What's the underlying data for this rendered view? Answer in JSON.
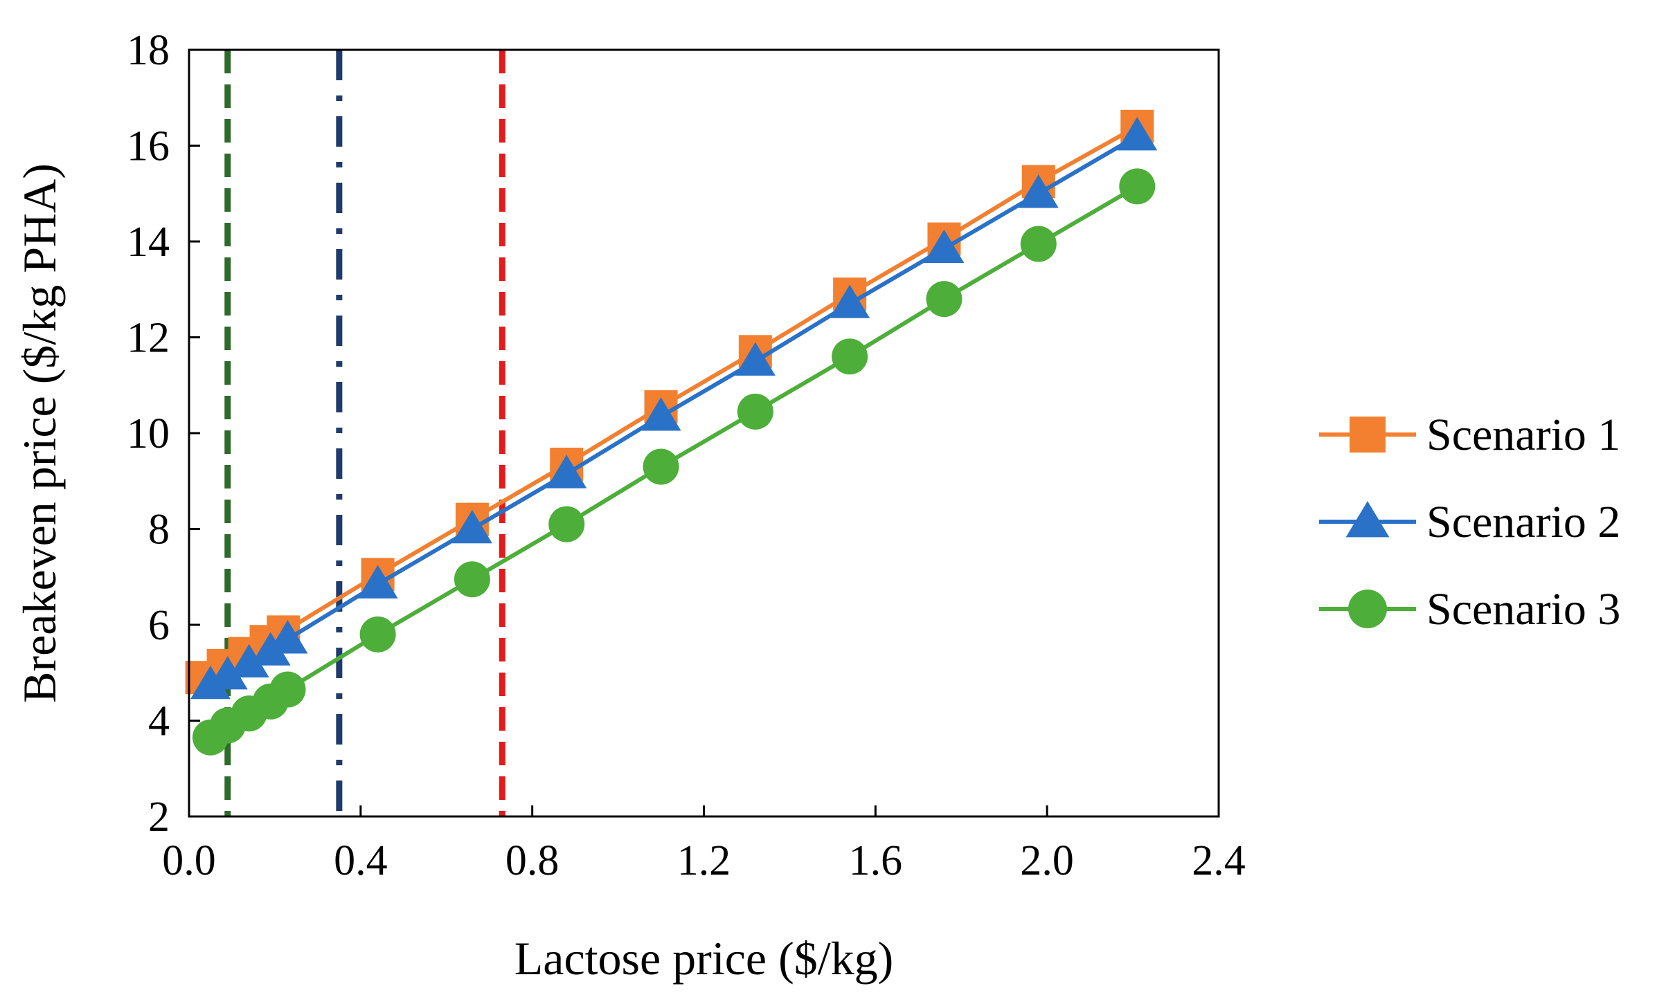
{
  "chart_data": {
    "type": "line",
    "title": "",
    "xlabel": "Lactose price ($/kg)",
    "ylabel": "Breakeven price ($/kg PHA)",
    "xlim": [
      0.0,
      2.4
    ],
    "ylim": [
      2,
      18
    ],
    "x_ticks": [
      0.0,
      0.4,
      0.8,
      1.2,
      1.6,
      2.0,
      2.4
    ],
    "x_tick_labels": [
      "0.0",
      "0.4",
      "0.8",
      "1.2",
      "1.6",
      "2.0",
      "2.4"
    ],
    "y_ticks": [
      2,
      4,
      6,
      8,
      10,
      12,
      14,
      16,
      18
    ],
    "y_tick_labels": [
      "2",
      "4",
      "6",
      "8",
      "10",
      "12",
      "14",
      "16",
      "18"
    ],
    "grid": false,
    "legend_position": "right",
    "series": [
      {
        "name": "Scenario 1",
        "color": "#F28030",
        "marker": "square",
        "x": [
          0.03,
          0.08,
          0.13,
          0.18,
          0.22,
          0.44,
          0.66,
          0.88,
          1.1,
          1.32,
          1.54,
          1.76,
          1.98,
          2.21
        ],
        "values": [
          4.9,
          5.15,
          5.4,
          5.65,
          5.85,
          7.05,
          8.2,
          9.35,
          10.55,
          11.7,
          12.9,
          14.05,
          15.25,
          16.4
        ]
      },
      {
        "name": "Scenario 2",
        "color": "#2A72C8",
        "marker": "triangle",
        "x": [
          0.05,
          0.09,
          0.14,
          0.19,
          0.23,
          0.44,
          0.66,
          0.88,
          1.1,
          1.32,
          1.54,
          1.76,
          1.98,
          2.21
        ],
        "values": [
          4.75,
          4.95,
          5.2,
          5.45,
          5.7,
          6.85,
          8.0,
          9.15,
          10.35,
          11.5,
          12.7,
          13.85,
          15.0,
          16.2
        ]
      },
      {
        "name": "Scenario 3",
        "color": "#4DAE3A",
        "marker": "circle",
        "x": [
          0.05,
          0.09,
          0.14,
          0.19,
          0.23,
          0.44,
          0.66,
          0.88,
          1.1,
          1.32,
          1.54,
          1.76,
          1.98,
          2.21
        ],
        "values": [
          3.65,
          3.9,
          4.15,
          4.4,
          4.65,
          5.8,
          6.95,
          8.1,
          9.3,
          10.45,
          11.6,
          12.8,
          13.95,
          15.15
        ]
      }
    ],
    "reference_lines": [
      {
        "x": 0.09,
        "color": "#2E6B2A",
        "style": "dashed"
      },
      {
        "x": 0.35,
        "color": "#1F3B6B",
        "style": "dash-dot"
      },
      {
        "x": 0.73,
        "color": "#E21B1B",
        "style": "dashed"
      }
    ]
  }
}
